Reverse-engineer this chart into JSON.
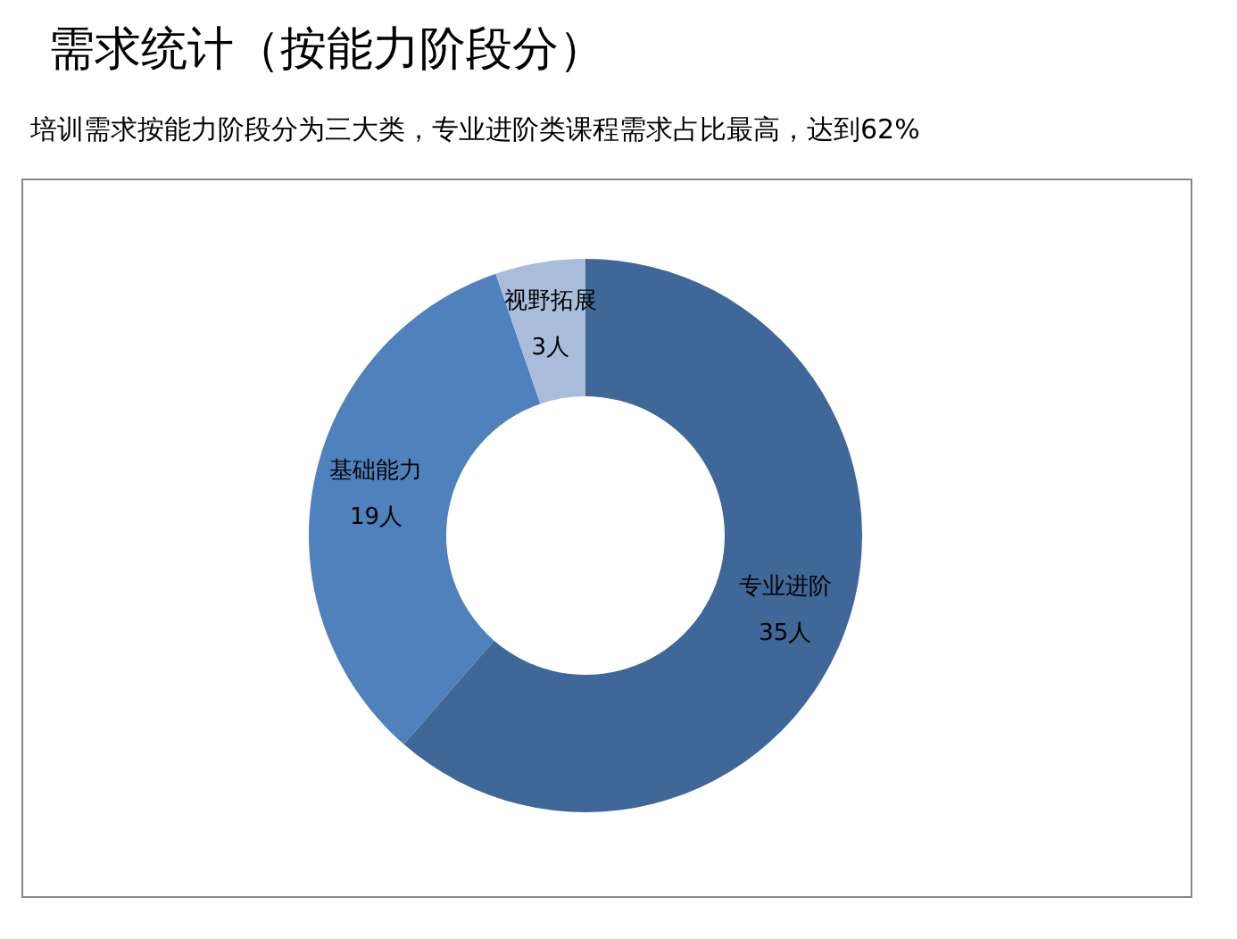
{
  "chart_data": {
    "type": "donut",
    "title": "需求统计（按能力阶段分）",
    "subtitle": "培训需求按能力阶段分为三大类，专业进阶类课程需求占比最高，达到62%",
    "categories": [
      "专业进阶",
      "基础能力",
      "视野拓展"
    ],
    "values": [
      35,
      19,
      3
    ],
    "value_labels": [
      "35人",
      "19人",
      "3人"
    ],
    "colors": [
      "#3f6797",
      "#4f81bd",
      "#a9bcd9"
    ],
    "legend": false
  }
}
